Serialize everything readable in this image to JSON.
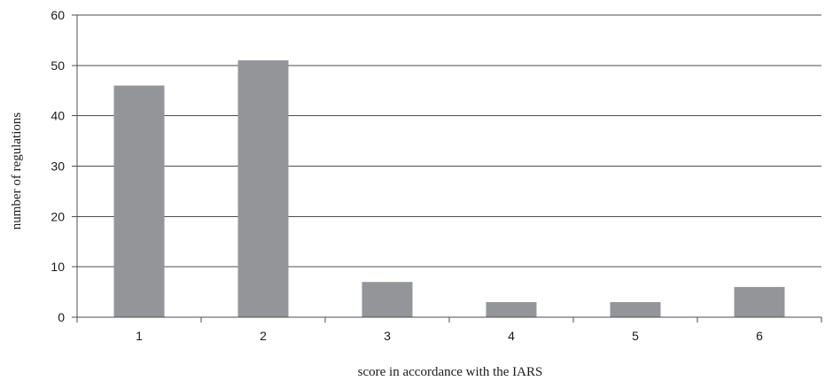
{
  "chart_data": {
    "type": "bar",
    "title": "",
    "xlabel": "score in accordance with the IARS",
    "ylabel": "number of regulations",
    "categories": [
      "1",
      "2",
      "3",
      "4",
      "5",
      "6"
    ],
    "values": [
      46,
      51,
      7,
      3,
      3,
      6
    ],
    "ylim": [
      0,
      60
    ],
    "yticks": [
      0,
      10,
      20,
      30,
      40,
      50,
      60
    ],
    "grid": true,
    "legend": "none",
    "bar_color": "#939598",
    "axis_color": "#4d4d4d"
  }
}
